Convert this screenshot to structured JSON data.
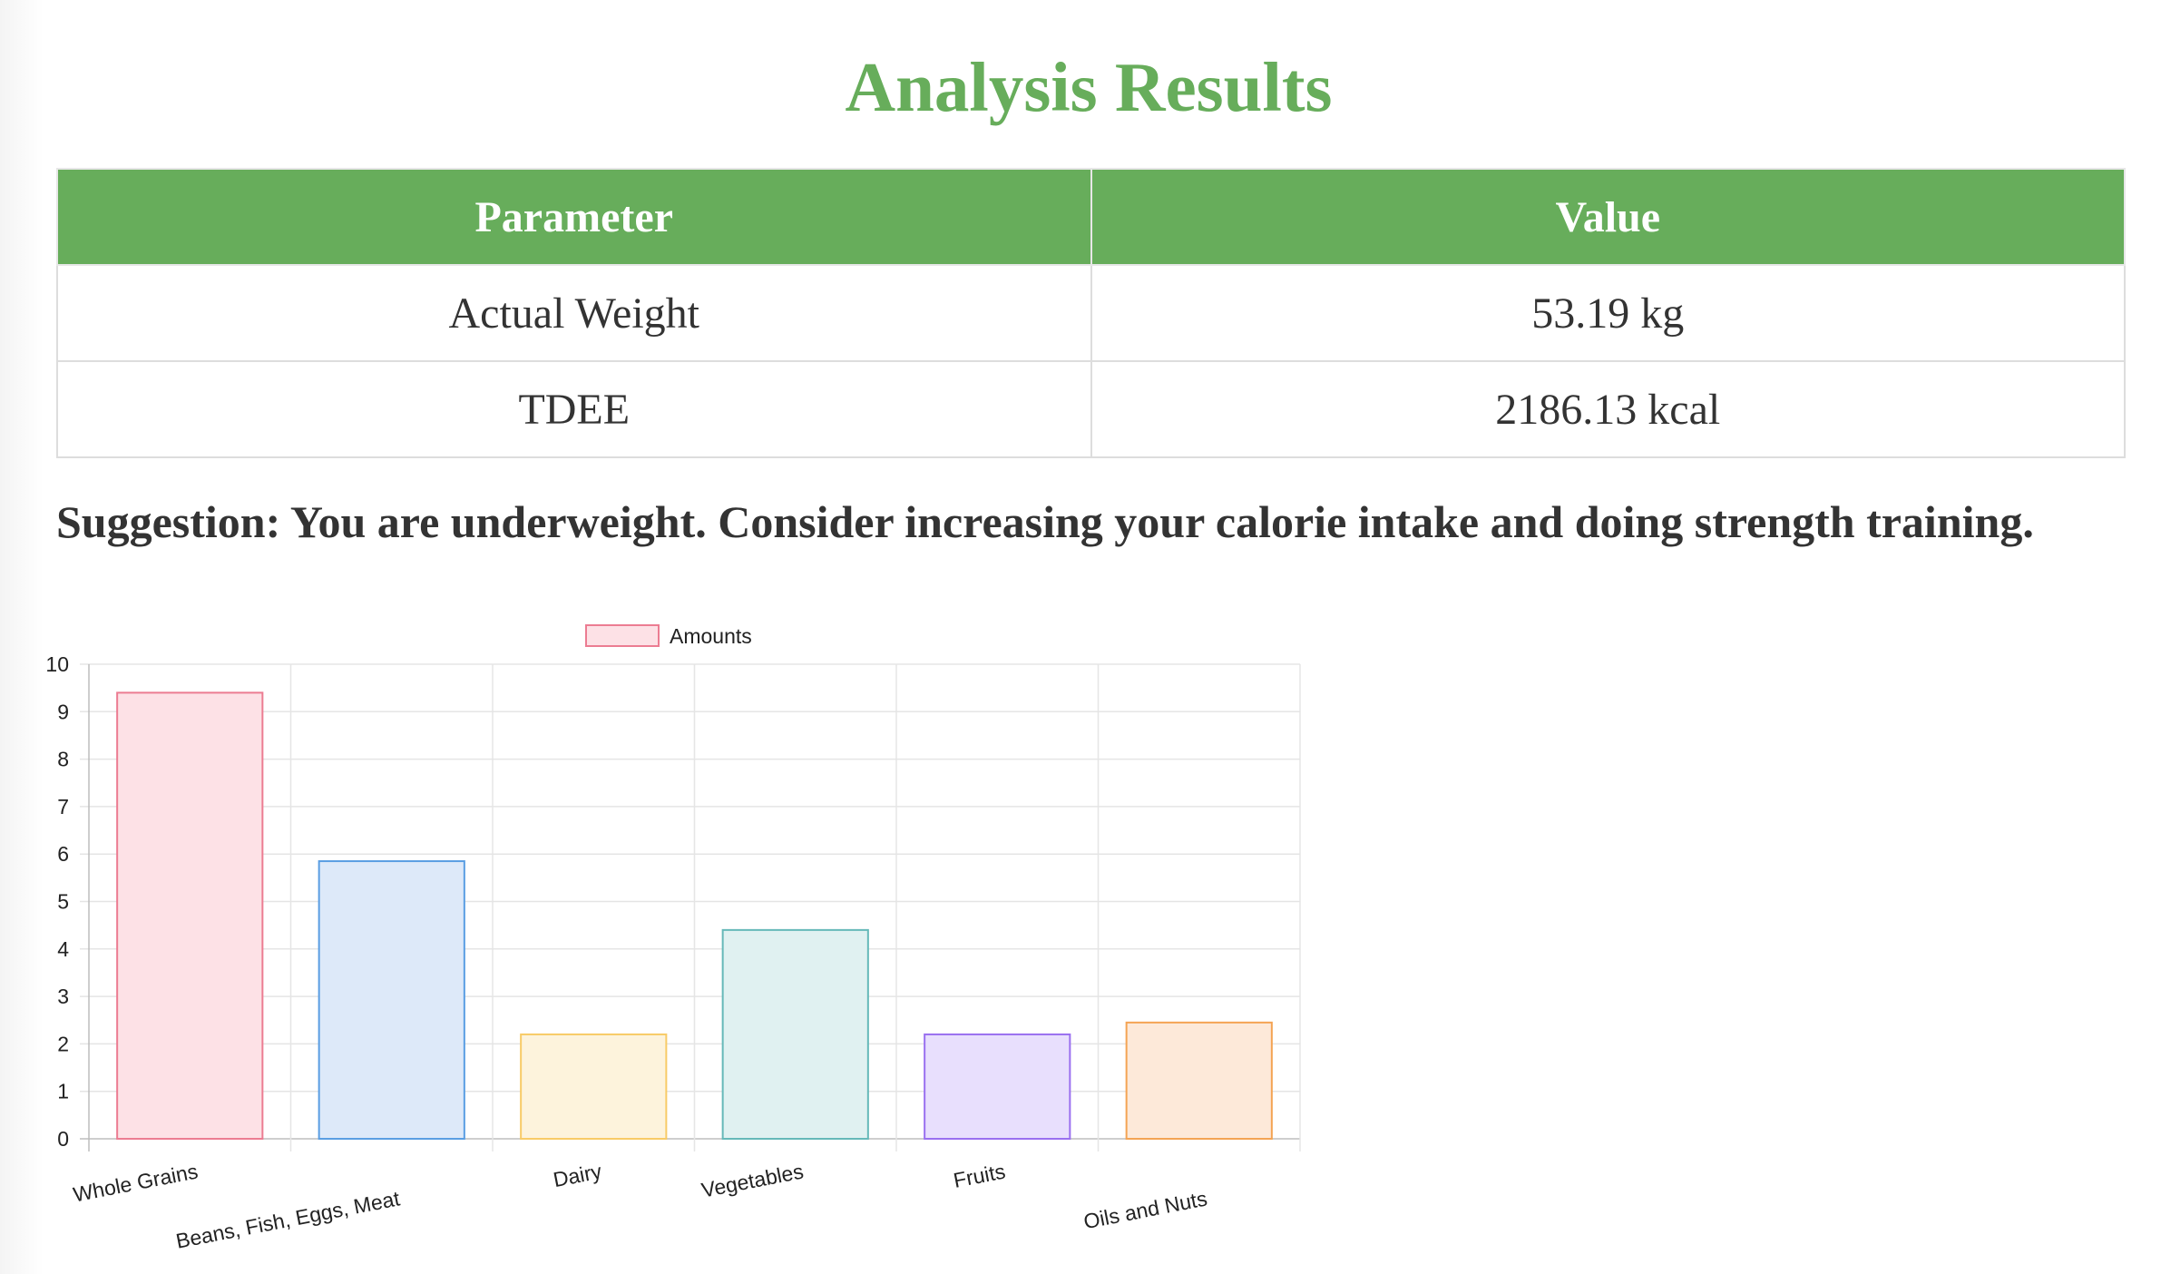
{
  "page": {
    "title": "Analysis Results"
  },
  "table": {
    "headers": [
      "Parameter",
      "Value"
    ],
    "rows": [
      {
        "parameter": "Actual Weight",
        "value": "53.19 kg"
      },
      {
        "parameter": "TDEE",
        "value": "2186.13 kcal"
      }
    ]
  },
  "suggestion": "Suggestion: You are underweight. Consider increasing your calorie intake and doing strength training.",
  "colors": {
    "accent": "#67ad5b",
    "text": "#333333",
    "grid": "#e5e5e5"
  },
  "chart_data": {
    "type": "bar",
    "categories": [
      "Whole Grains",
      "Beans, Fish, Eggs, Meat",
      "Dairy",
      "Vegetables",
      "Fruits",
      "Oils and Nuts"
    ],
    "series": [
      {
        "name": "Amounts",
        "values": [
          9.4,
          5.85,
          2.2,
          4.4,
          2.2,
          2.45
        ]
      }
    ],
    "bar_fills": [
      "#fde1e6",
      "#dde9f9",
      "#fdf3dc",
      "#e0f1f1",
      "#e8dffd",
      "#fde9d9"
    ],
    "bar_strokes": [
      "#ec7c92",
      "#5a9ee3",
      "#f8cb67",
      "#66b9b9",
      "#9a70f0",
      "#f4a454"
    ],
    "legend_swatch": {
      "fill": "#fde1e6",
      "stroke": "#ec7c92"
    },
    "ylim": [
      0,
      10
    ],
    "yticks": [
      0,
      1,
      2,
      3,
      4,
      5,
      6,
      7,
      8,
      9,
      10
    ],
    "xlabel": "",
    "ylabel": "",
    "grid": true,
    "legend_position": "top"
  }
}
